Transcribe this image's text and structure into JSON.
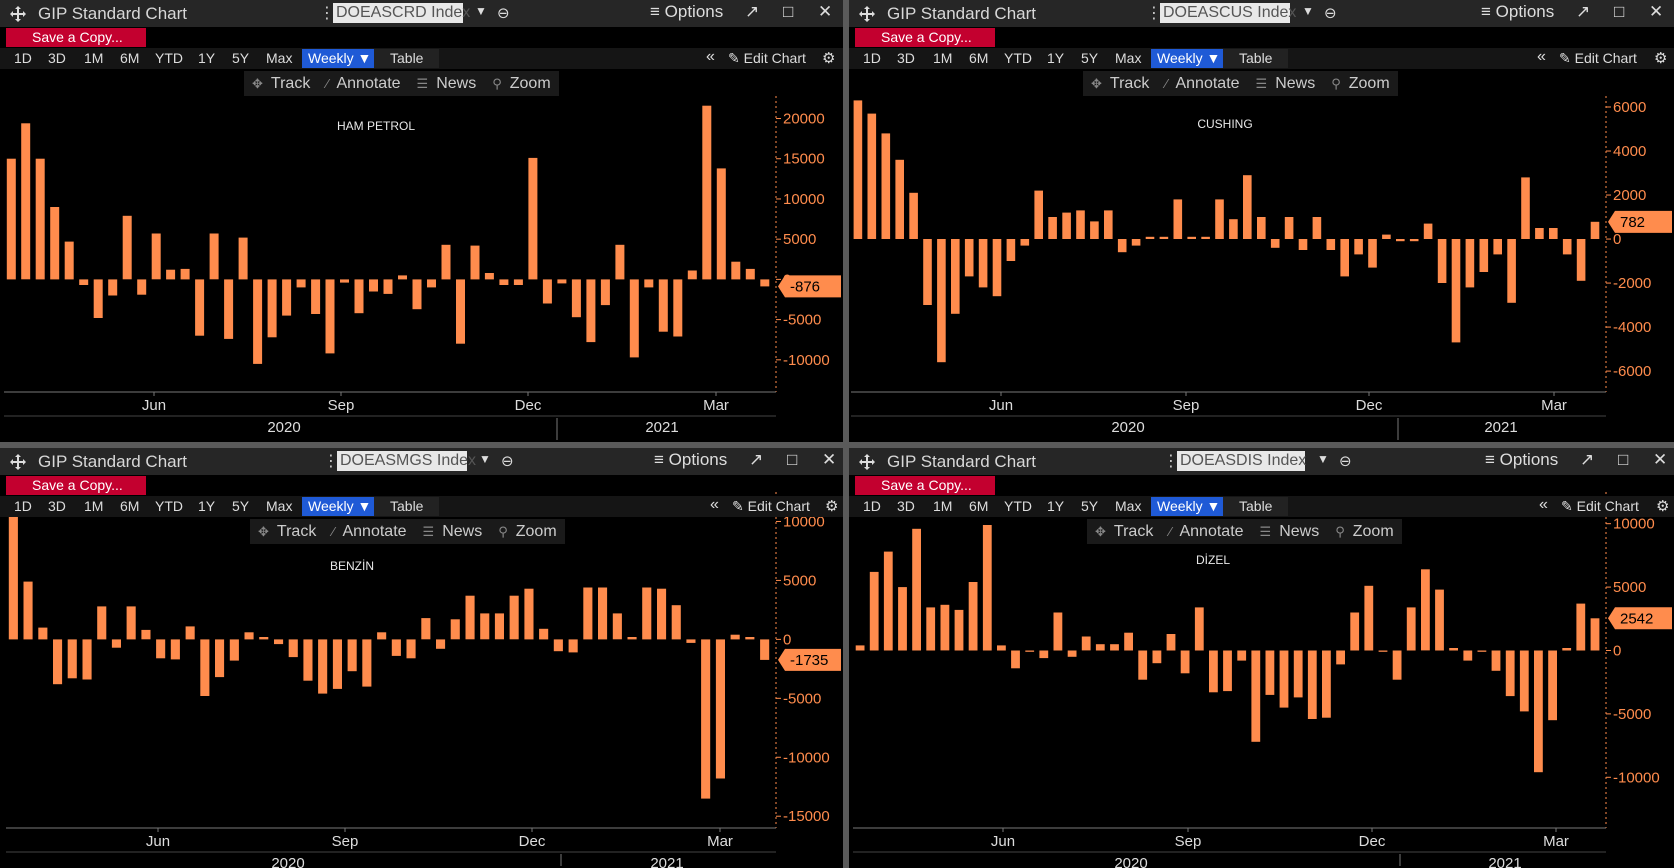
{
  "panels": [
    {
      "id": "p1",
      "window_title": "GIP Standard Chart",
      "ticker": "DOEASCRD Index",
      "options_label": "Options",
      "save_copy_label": "Save a Copy...",
      "ranges": [
        "1D",
        "3D",
        "1M",
        "6M",
        "YTD",
        "1Y",
        "5Y",
        "Max"
      ],
      "weekly_label": "Weekly",
      "table_label": "Table",
      "edit_chart_label": "Edit Chart",
      "actions": [
        "Track",
        "Annotate",
        "News",
        "Zoom"
      ],
      "chart_data": {
        "type": "bar",
        "title": "HAM PETROL",
        "yticks": [
          20000,
          15000,
          10000,
          5000,
          0,
          -5000,
          -10000
        ],
        "ytick_labels": [
          "20000",
          "15000",
          "10000",
          "5000",
          "0",
          "-5000",
          "-10000"
        ],
        "ylim": [
          -14000,
          22800
        ],
        "xtick_labels": [
          "Jun",
          "Sep",
          "Dec",
          "Mar"
        ],
        "year_labels": [
          "2020",
          "2021"
        ],
        "last_value_label": "-876",
        "values": [
          15000,
          19400,
          15000,
          9000,
          4700,
          -700,
          -4800,
          -2000,
          7900,
          -1900,
          5700,
          1200,
          1300,
          -7000,
          5700,
          -7400,
          5200,
          -10500,
          -7200,
          -4500,
          -1000,
          -4300,
          -9200,
          -400,
          -4200,
          -1500,
          -1800,
          500,
          -3700,
          -1000,
          4300,
          -8000,
          4200,
          800,
          -700,
          -700,
          15100,
          -3000,
          -500,
          -4700,
          -7800,
          -3200,
          4300,
          -9700,
          -1000,
          -6500,
          -7100,
          1100,
          21600,
          13800,
          2200,
          1300,
          -876
        ],
        "bar_color": "#ff8c4d",
        "label_color": "#ff8c4d"
      }
    },
    {
      "id": "p2",
      "window_title": "GIP Standard Chart",
      "ticker": "DOEASCUS Index",
      "options_label": "Options",
      "save_copy_label": "Save a Copy...",
      "ranges": [
        "1D",
        "3D",
        "1M",
        "6M",
        "YTD",
        "1Y",
        "5Y",
        "Max"
      ],
      "weekly_label": "Weekly",
      "table_label": "Table",
      "edit_chart_label": "Edit Chart",
      "actions": [
        "Track",
        "Annotate",
        "News",
        "Zoom"
      ],
      "chart_data": {
        "type": "bar",
        "title": "CUSHING",
        "yticks": [
          6000,
          4000,
          2000,
          0,
          -2000,
          -4000,
          -6000
        ],
        "ytick_labels": [
          "6000",
          "4000",
          "2000",
          "0",
          "-2000",
          "-4000",
          "-6000"
        ],
        "ylim": [
          -6950,
          6500
        ],
        "xtick_labels": [
          "Jun",
          "Sep",
          "Dec",
          "Mar"
        ],
        "year_labels": [
          "2020",
          "2021"
        ],
        "last_value_label": "782",
        "values": [
          6300,
          5700,
          4800,
          3600,
          2100,
          -3000,
          -5600,
          -3400,
          -1700,
          -2200,
          -2600,
          -1000,
          -300,
          2200,
          1000,
          1200,
          1300,
          800,
          1300,
          -600,
          -300,
          100,
          100,
          1800,
          100,
          100,
          1800,
          900,
          2900,
          1000,
          -400,
          1000,
          -500,
          1000,
          -500,
          -1700,
          -700,
          -1300,
          200,
          -100,
          -100,
          700,
          -2000,
          -4700,
          -2200,
          -1500,
          -700,
          -2900,
          2800,
          500,
          500,
          -700,
          -1900,
          782
        ],
        "bar_color": "#ff8c4d",
        "label_color": "#ff8c4d"
      }
    },
    {
      "id": "p3",
      "window_title": "GIP Standard Chart",
      "ticker": "DOEASMGS Index",
      "options_label": "Options",
      "save_copy_label": "Save a Copy...",
      "ranges": [
        "1D",
        "3D",
        "1M",
        "6M",
        "YTD",
        "1Y",
        "5Y",
        "Max"
      ],
      "weekly_label": "Weekly",
      "table_label": "Table",
      "edit_chart_label": "Edit Chart",
      "actions": [
        "Track",
        "Annotate",
        "News",
        "Zoom"
      ],
      "chart_data": {
        "type": "bar",
        "title": "BENZİN",
        "yticks": [
          10000,
          5000,
          0,
          -5000,
          -10000,
          -15000
        ],
        "ytick_labels": [
          "10000",
          "5000",
          "0",
          "-5000",
          "-10000",
          "-15000"
        ],
        "ylim": [
          -16000,
          12500
        ],
        "xtick_labels": [
          "Jun",
          "Sep",
          "Dec",
          "Mar"
        ],
        "year_labels": [
          "2020",
          "2021"
        ],
        "last_value_label": "-1735",
        "values": [
          10500,
          4900,
          1000,
          -3800,
          -3300,
          -3400,
          2800,
          -700,
          2800,
          800,
          -1600,
          -1700,
          1100,
          -4800,
          -3200,
          -1800,
          600,
          200,
          -400,
          -1500,
          -3500,
          -4600,
          -4200,
          -2700,
          -4000,
          600,
          -1400,
          -1600,
          1800,
          -800,
          1700,
          3700,
          2200,
          2200,
          3700,
          4300,
          900,
          -1000,
          -1100,
          4400,
          4400,
          2200,
          200,
          4400,
          4300,
          2900,
          -300,
          -13500,
          -11800,
          400,
          200,
          -1735
        ],
        "bar_color": "#ff8c4d",
        "label_color": "#ff8c4d"
      }
    },
    {
      "id": "p4",
      "window_title": "GIP Standard Chart",
      "ticker": "DOEASDIS Index",
      "options_label": "Options",
      "save_copy_label": "Save a Copy...",
      "ranges": [
        "1D",
        "3D",
        "1M",
        "6M",
        "YTD",
        "1Y",
        "5Y",
        "Max"
      ],
      "weekly_label": "Weekly",
      "table_label": "Table",
      "edit_chart_label": "Edit Chart",
      "actions": [
        "Track",
        "Annotate",
        "News",
        "Zoom"
      ],
      "chart_data": {
        "type": "bar",
        "title": "DİZEL",
        "yticks": [
          10000,
          5000,
          0,
          -5000,
          -10000
        ],
        "ytick_labels": [
          "10000",
          "5000",
          "0",
          "-5000",
          "-10000"
        ],
        "ylim": [
          -14000,
          12500
        ],
        "xtick_labels": [
          "Jun",
          "Sep",
          "Dec",
          "Mar"
        ],
        "year_labels": [
          "2020",
          "2021"
        ],
        "last_value_label": "2542",
        "values": [
          400,
          6200,
          7800,
          5000,
          9600,
          3400,
          3600,
          3200,
          5400,
          9900,
          400,
          -1400,
          -100,
          -600,
          3000,
          -500,
          1100,
          500,
          500,
          1400,
          -2300,
          -1000,
          1300,
          -1800,
          3400,
          -3300,
          -3200,
          -800,
          -7200,
          -3500,
          -4500,
          -3700,
          -5400,
          -5300,
          -1100,
          3000,
          5100,
          -100,
          -2300,
          3400,
          6400,
          4800,
          200,
          -800,
          -100,
          -1600,
          -3600,
          -4800,
          -9600,
          -5500,
          200,
          3700,
          2542
        ],
        "bar_color": "#ff8c4d",
        "label_color": "#ff8c4d"
      }
    }
  ]
}
